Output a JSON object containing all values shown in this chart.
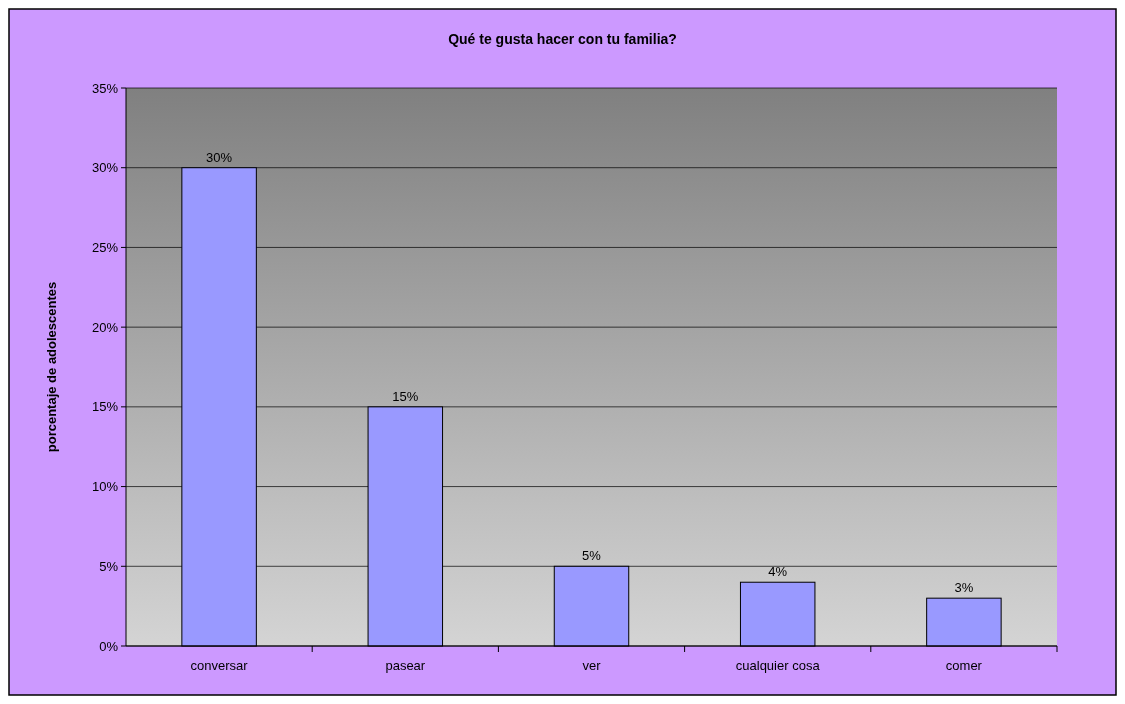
{
  "chart_data": {
    "type": "bar",
    "title": "Qué te gusta hacer con tu familia?",
    "ylabel": "porcentaje de adolescentes",
    "categories": [
      "conversar",
      "pasear",
      "ver",
      "cualquier cosa",
      "comer"
    ],
    "values": [
      30,
      15,
      5,
      4,
      3
    ],
    "color": "#9999ff",
    "value_labels": [
      "30%",
      "15%",
      "5%",
      "4%",
      "3%"
    ],
    "ylim": [
      0,
      35
    ],
    "yticks": [
      {
        "value": 0,
        "label": "0%"
      },
      {
        "value": 5,
        "label": "5%"
      },
      {
        "value": 10,
        "label": "10%"
      },
      {
        "value": 15,
        "label": "15%"
      },
      {
        "value": 20,
        "label": "20%"
      },
      {
        "value": 25,
        "label": "25%"
      },
      {
        "value": 30,
        "label": "30%"
      },
      {
        "value": 35,
        "label": "35%"
      }
    ],
    "grid": "y"
  }
}
